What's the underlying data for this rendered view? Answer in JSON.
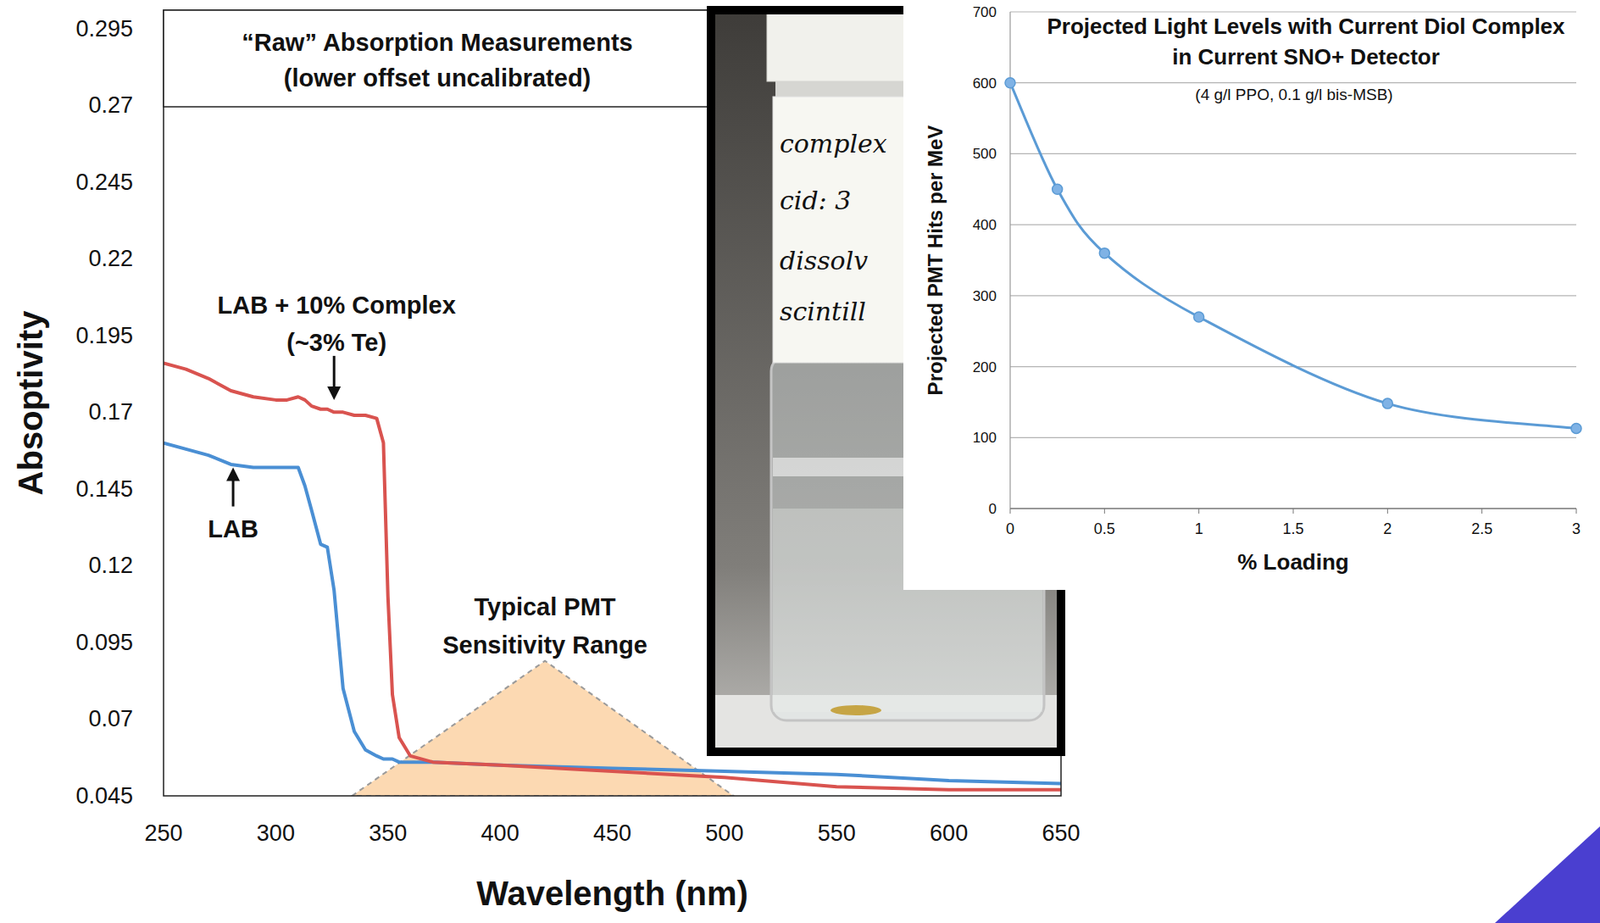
{
  "chart_data": [
    {
      "type": "line",
      "title": "“Raw” Absorption Measurements",
      "subtitle": "(lower offset uncalibrated)",
      "x_label": "Wavelength (nm)",
      "y_label": "Absoptivity",
      "x": [
        250,
        260,
        270,
        280,
        290,
        300,
        305,
        310,
        313,
        316,
        320,
        323,
        326,
        330,
        335,
        340,
        345,
        348,
        350,
        352,
        355,
        360,
        370,
        400,
        450,
        500,
        550,
        600,
        650
      ],
      "series": [
        {
          "color": "#d9534f",
          "values": [
            0.186,
            0.184,
            0.181,
            0.177,
            0.175,
            0.174,
            0.174,
            0.175,
            0.174,
            0.172,
            0.171,
            0.171,
            0.17,
            0.17,
            0.169,
            0.169,
            0.168,
            0.16,
            0.11,
            0.078,
            0.064,
            0.058,
            0.056,
            0.055,
            0.053,
            0.051,
            0.048,
            0.047,
            0.047
          ]
        },
        {
          "color": "#4a8fd4",
          "values": [
            0.16,
            0.158,
            0.156,
            0.153,
            0.152,
            0.152,
            0.152,
            0.152,
            0.146,
            0.138,
            0.127,
            0.126,
            0.112,
            0.08,
            0.066,
            0.06,
            0.058,
            0.057,
            0.057,
            0.057,
            0.056,
            0.056,
            0.056,
            0.055,
            0.054,
            0.053,
            0.052,
            0.05,
            0.049
          ]
        }
      ],
      "xlim": [
        250,
        650
      ],
      "xticks": [
        250,
        300,
        350,
        400,
        450,
        500,
        550,
        600,
        650
      ],
      "ylim": [
        0.045,
        0.301
      ],
      "yticks": [
        0.045,
        0.07,
        0.095,
        0.12,
        0.145,
        0.17,
        0.195,
        0.22,
        0.245,
        0.27,
        0.295
      ],
      "grid": false,
      "annotations": [
        {
          "text": [
            "LAB + 10% Complex",
            "(~3% Te)"
          ],
          "x": 326,
          "y": 0.174
        },
        {
          "text": [
            "LAB"
          ],
          "x": 281,
          "y": 0.152
        }
      ],
      "shaded_region": {
        "text": [
          "Typical PMT",
          "Sensitivity Range"
        ],
        "x": [
          334,
          420,
          504
        ],
        "y": [
          0.045,
          0.089,
          0.045
        ],
        "color": "#fcd9b2"
      }
    },
    {
      "type": "line",
      "title": "Projected Light Levels with Current Diol Complex in Current SNO+ Detector",
      "subtitle": "(4 g/l PPO, 0.1 g/l bis-MSB)",
      "x_label": "% Loading",
      "y_label": "Projected PMT Hits per MeV",
      "x": [
        0,
        0.25,
        0.5,
        1,
        2,
        3
      ],
      "values": [
        600,
        450,
        360,
        270,
        148,
        113
      ],
      "color": "#5b9bd5",
      "marker": "circle",
      "line_style": "smooth",
      "xlim": [
        0,
        3
      ],
      "xticks": [
        0,
        0.5,
        1,
        1.5,
        2,
        2.5,
        3
      ],
      "ylim": [
        0,
        700
      ],
      "yticks": [
        0,
        100,
        200,
        300,
        400,
        500,
        600,
        700
      ],
      "grid": true
    }
  ],
  "photo": {
    "label_lines": [
      "complex",
      "cid: 3",
      "dissolv",
      "scintill"
    ]
  }
}
